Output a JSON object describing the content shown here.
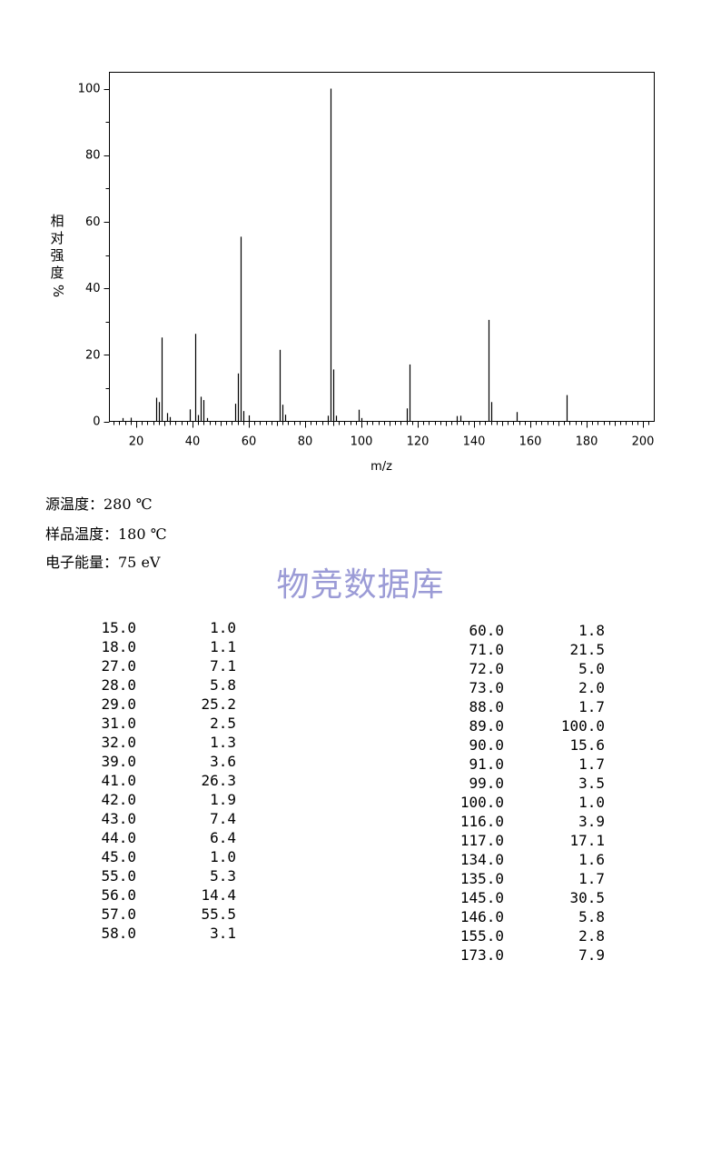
{
  "chart_data": {
    "type": "bar",
    "xlabel": "m/z",
    "ylabel": "相对强度%",
    "ylabel_chars": [
      "相",
      "对",
      "强",
      "度",
      "%"
    ],
    "xlim": [
      10,
      203
    ],
    "ylim": [
      0,
      105
    ],
    "xticks": [
      20,
      40,
      60,
      80,
      100,
      120,
      140,
      160,
      180,
      200
    ],
    "yticks": [
      0,
      20,
      40,
      60,
      80,
      100
    ],
    "grid": false,
    "peaks": [
      {
        "x": 15,
        "y": 1.0
      },
      {
        "x": 18,
        "y": 1.1
      },
      {
        "x": 27,
        "y": 7.1
      },
      {
        "x": 28,
        "y": 5.8
      },
      {
        "x": 29,
        "y": 25.2
      },
      {
        "x": 31,
        "y": 2.5
      },
      {
        "x": 32,
        "y": 1.3
      },
      {
        "x": 39,
        "y": 3.6
      },
      {
        "x": 41,
        "y": 26.3
      },
      {
        "x": 42,
        "y": 1.9
      },
      {
        "x": 43,
        "y": 7.4
      },
      {
        "x": 44,
        "y": 6.4
      },
      {
        "x": 45,
        "y": 1.0
      },
      {
        "x": 55,
        "y": 5.3
      },
      {
        "x": 56,
        "y": 14.4
      },
      {
        "x": 57,
        "y": 55.5
      },
      {
        "x": 58,
        "y": 3.1
      },
      {
        "x": 60,
        "y": 1.8
      },
      {
        "x": 71,
        "y": 21.5
      },
      {
        "x": 72,
        "y": 5.0
      },
      {
        "x": 73,
        "y": 2.0
      },
      {
        "x": 88,
        "y": 1.7
      },
      {
        "x": 89,
        "y": 100.0
      },
      {
        "x": 90,
        "y": 15.6
      },
      {
        "x": 91,
        "y": 1.7
      },
      {
        "x": 99,
        "y": 3.5
      },
      {
        "x": 100,
        "y": 1.0
      },
      {
        "x": 116,
        "y": 3.9
      },
      {
        "x": 117,
        "y": 17.1
      },
      {
        "x": 134,
        "y": 1.6
      },
      {
        "x": 135,
        "y": 1.7
      },
      {
        "x": 145,
        "y": 30.5
      },
      {
        "x": 146,
        "y": 5.8
      },
      {
        "x": 155,
        "y": 2.8
      },
      {
        "x": 173,
        "y": 7.9
      }
    ]
  },
  "conditions": {
    "source_temp": "源温度：280 ℃",
    "sample_temp": "样品温度：180 ℃",
    "electron_energy": "电子能量：75 eV"
  },
  "watermark": "物竞数据库",
  "table_left": [
    {
      "mz": "15.0",
      "ab": "1.0"
    },
    {
      "mz": "18.0",
      "ab": "1.1"
    },
    {
      "mz": "27.0",
      "ab": "7.1"
    },
    {
      "mz": "28.0",
      "ab": "5.8"
    },
    {
      "mz": "29.0",
      "ab": "25.2"
    },
    {
      "mz": "31.0",
      "ab": "2.5"
    },
    {
      "mz": "32.0",
      "ab": "1.3"
    },
    {
      "mz": "39.0",
      "ab": "3.6"
    },
    {
      "mz": "41.0",
      "ab": "26.3"
    },
    {
      "mz": "42.0",
      "ab": "1.9"
    },
    {
      "mz": "43.0",
      "ab": "7.4"
    },
    {
      "mz": "44.0",
      "ab": "6.4"
    },
    {
      "mz": "45.0",
      "ab": "1.0"
    },
    {
      "mz": "55.0",
      "ab": "5.3"
    },
    {
      "mz": "56.0",
      "ab": "14.4"
    },
    {
      "mz": "57.0",
      "ab": "55.5"
    },
    {
      "mz": "58.0",
      "ab": "3.1"
    }
  ],
  "table_right": [
    {
      "mz": "60.0",
      "ab": "1.8"
    },
    {
      "mz": "71.0",
      "ab": "21.5"
    },
    {
      "mz": "72.0",
      "ab": "5.0"
    },
    {
      "mz": "73.0",
      "ab": "2.0"
    },
    {
      "mz": "88.0",
      "ab": "1.7"
    },
    {
      "mz": "89.0",
      "ab": "100.0"
    },
    {
      "mz": "90.0",
      "ab": "15.6"
    },
    {
      "mz": "91.0",
      "ab": "1.7"
    },
    {
      "mz": "99.0",
      "ab": "3.5"
    },
    {
      "mz": "100.0",
      "ab": "1.0"
    },
    {
      "mz": "116.0",
      "ab": "3.9"
    },
    {
      "mz": "117.0",
      "ab": "17.1"
    },
    {
      "mz": "134.0",
      "ab": "1.6"
    },
    {
      "mz": "135.0",
      "ab": "1.7"
    },
    {
      "mz": "145.0",
      "ab": "30.5"
    },
    {
      "mz": "146.0",
      "ab": "5.8"
    },
    {
      "mz": "155.0",
      "ab": "2.8"
    },
    {
      "mz": "173.0",
      "ab": "7.9"
    }
  ]
}
